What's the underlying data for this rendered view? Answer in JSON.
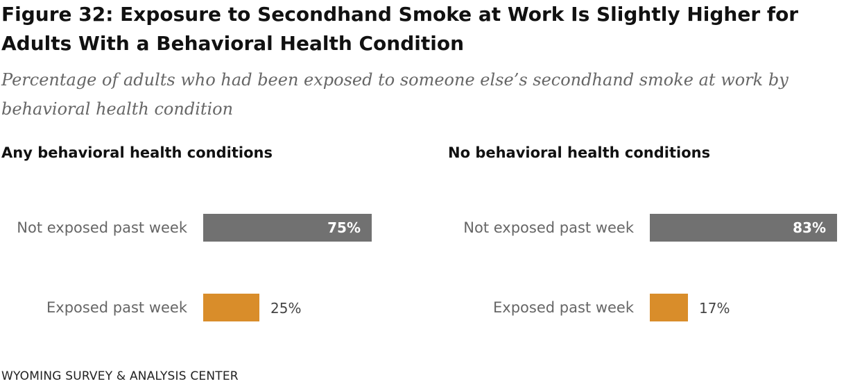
{
  "chart_data": [
    {
      "type": "bar",
      "orientation": "horizontal",
      "title": "Any behavioral health conditions",
      "categories": [
        "Not exposed past week",
        "Exposed past week"
      ],
      "values": [
        75,
        25
      ],
      "value_labels": [
        "75%",
        "25%"
      ],
      "colors": [
        "#717171",
        "#D98D2A"
      ],
      "xlim": [
        0,
        75
      ]
    },
    {
      "type": "bar",
      "orientation": "horizontal",
      "title": "No behavioral health conditions",
      "categories": [
        "Not exposed past week",
        "Exposed past week"
      ],
      "values": [
        83,
        17
      ],
      "value_labels": [
        "83%",
        "17%"
      ],
      "colors": [
        "#717171",
        "#D98D2A"
      ],
      "xlim": [
        0,
        83
      ]
    }
  ],
  "figure": {
    "title": "Figure 32: Exposure to Secondhand Smoke at Work Is Slightly Higher for Adults With a Behavioral Health Condition",
    "subtitle": "Percentage of adults who had been exposed to someone else’s secondhand smoke at work by behavioral health condition",
    "source": "WYOMING SURVEY & ANALYSIS CENTER"
  }
}
